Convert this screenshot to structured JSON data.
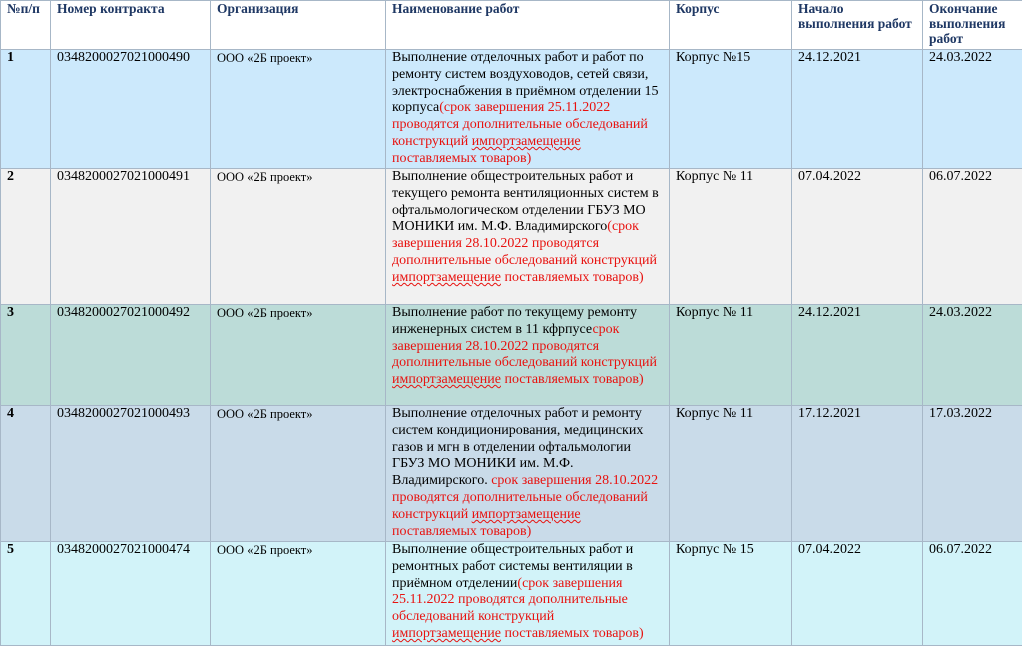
{
  "header": {
    "num": "№п/п",
    "contract": "Номер контракта",
    "org": "Организация",
    "works": "Наименование работ",
    "building": "Корпус",
    "start": "Начало выполнения работ",
    "end": "Окончание выполнения работ"
  },
  "rows": [
    {
      "num": "1",
      "contract": "0348200027021000490",
      "org": "ООО «2Б проект»",
      "works_main": "Выполнение отделочных работ и работ по ремонту систем воздуховодов, сетей связи, электроснабжения в приёмном отделении 15 корпуса",
      "works_note_pre": "(срок завершения 25.11.2022 проводятся дополнительные обследований конструкций ",
      "works_note_squiggle": "импортзамещение",
      "works_note_post": " поставляемых товаров)",
      "building": "Корпус №15",
      "start": "24.12.2021",
      "end": "24.03.2022"
    },
    {
      "num": "2",
      "contract": "0348200027021000491",
      "org": "ООО «2Б проект»",
      "works_main": "Выполнение общестроительных работ и текущего ремонта вентиляционных систем в офтальмологическом отделении ГБУЗ МО МОНИКИ им. М.Ф. Владимирского",
      "works_note_pre": "(срок завершения 28.10.2022 проводятся дополнительные обследований конструкций ",
      "works_note_squiggle": "импортзамещение",
      "works_note_post": " поставляемых товаров)",
      "building": "Корпус № 11",
      "start": "07.04.2022",
      "end": "06.07.2022"
    },
    {
      "num": "3",
      "contract": "0348200027021000492",
      "org": "ООО «2Б проект»",
      "works_main": "Выполнение работ по текущему ремонту инженерных систем в 11 кфрпусе",
      "works_note_pre": "срок завершения 28.10.2022 проводятся дополнительные обследований конструкций ",
      "works_note_squiggle": "импортзамещение",
      "works_note_post": " поставляемых товаров)",
      "building": "Корпус № 11",
      "start": "24.12.2021",
      "end": "24.03.2022"
    },
    {
      "num": "4",
      "contract": "0348200027021000493",
      "org": "ООО «2Б проект»",
      "works_main": "Выполнение отделочных работ и ремонту систем кондиционирования, медицинских газов и мгн в отделении офтальмологии ГБУЗ МО МОНИКИ им. М.Ф. Владимирского. ",
      "works_note_pre": "срок завершения 28.10.2022 проводятся дополнительные обследований конструкций ",
      "works_note_squiggle": "импортзамещение",
      "works_note_post": " поставляемых товаров)",
      "building": "Корпус № 11",
      "start": "17.12.2021",
      "end": "17.03.2022"
    },
    {
      "num": "5",
      "contract": "0348200027021000474",
      "org": "ООО «2Б проект»",
      "works_main": "Выполнение общестроительных работ и ремонтных работ системы вентиляции в приёмном отделении",
      "works_note_pre": "(срок завершения 25.11.2022 проводятся дополнительные обследований конструкций ",
      "works_note_squiggle": "импортзамещение",
      "works_note_post": " поставляемых товаров)",
      "building": "Корпус № 15",
      "start": "07.04.2022",
      "end": "06.07.2022"
    }
  ]
}
